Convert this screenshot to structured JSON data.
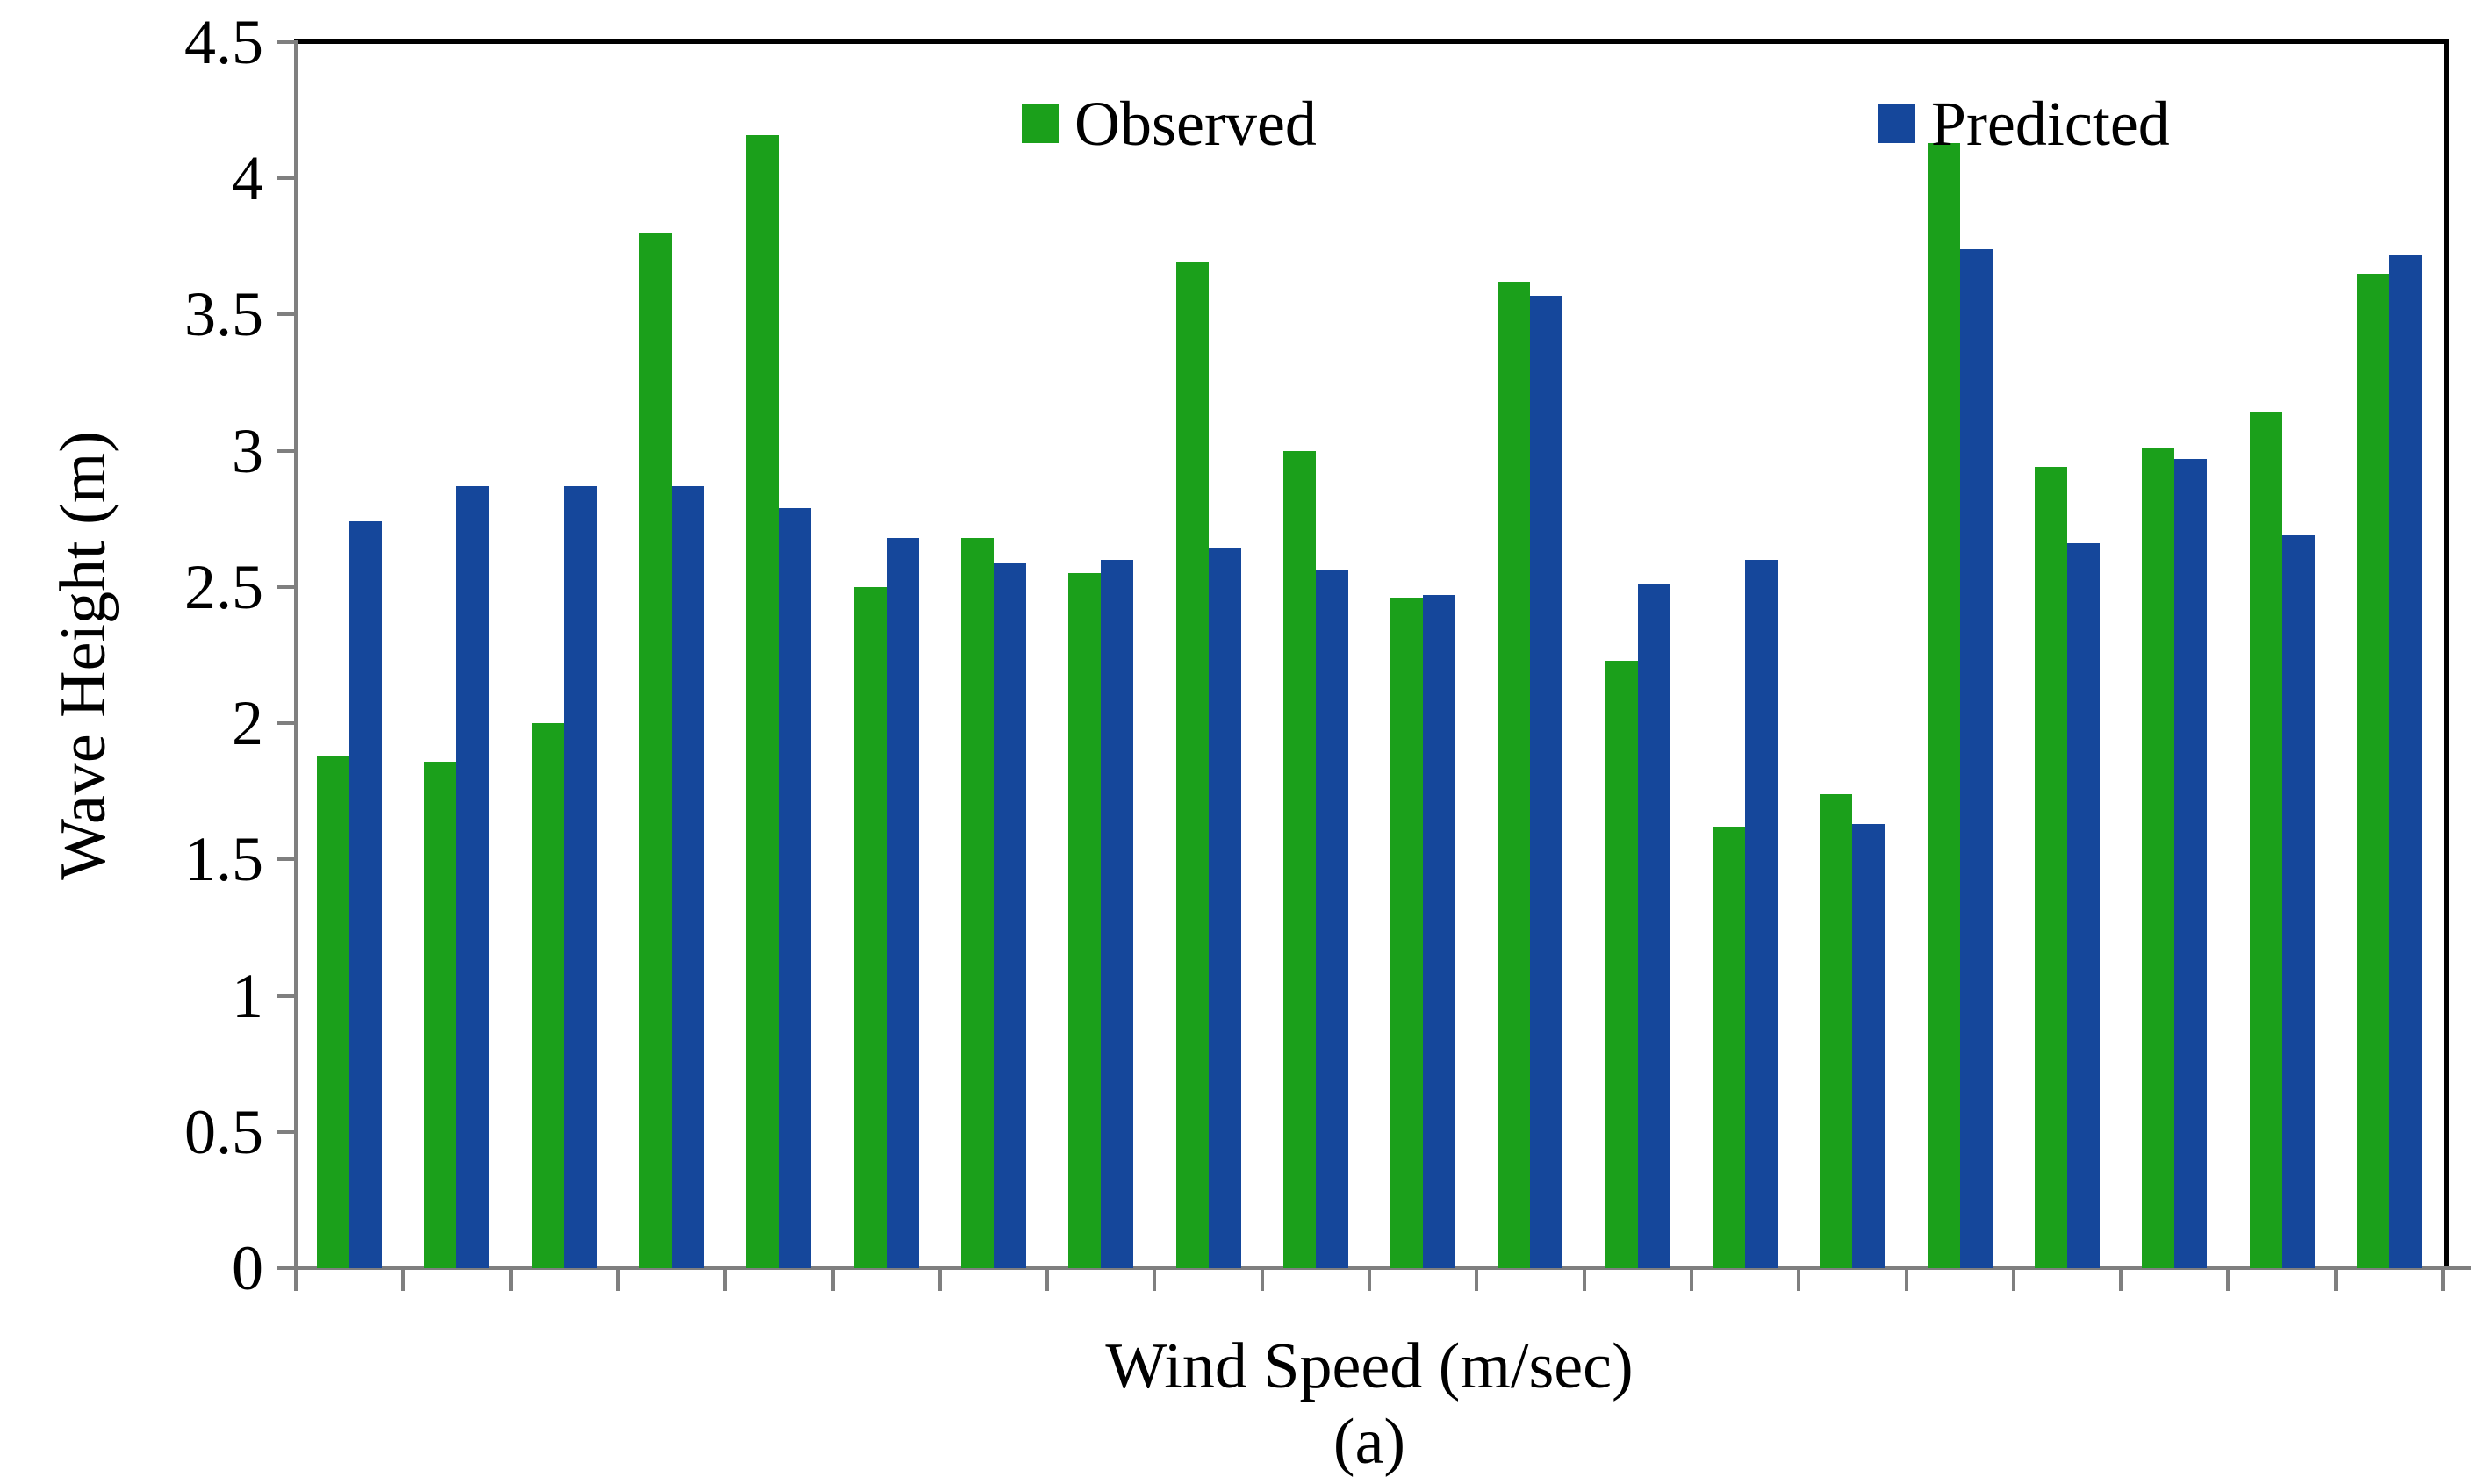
{
  "figure": {
    "y_axis": {
      "title": "Wave Height (m)",
      "ticks": [
        "4.5",
        "4",
        "3.5",
        "3",
        "2.5",
        "2",
        "1.5",
        "1",
        "0.5",
        "0"
      ]
    },
    "x_axis": {
      "title": "Wind Speed (m/sec)"
    },
    "caption": "(a)",
    "legend": {
      "observed_label": "Observed",
      "predicted_label": "Predicted"
    },
    "colors": {
      "observed": "#1BA01B",
      "predicted": "#15479B",
      "axis_gray": "#7f7f7f",
      "border_black": "#000000",
      "text": "#000000",
      "background": "#ffffff"
    }
  },
  "chart_data": {
    "type": "bar",
    "title": "",
    "xlabel": "Wind Speed (m/sec)",
    "ylabel": "Wave Height (m)",
    "caption": "(a)",
    "ylim": [
      0,
      4.5
    ],
    "y_tick_step": 0.5,
    "y_tick_labels": [
      "4.5",
      "4",
      "3.5",
      "3",
      "2.5",
      "2",
      "1.5",
      "1",
      "0.5",
      "0"
    ],
    "x_tick_labels": [],
    "n_groups": 20,
    "grid": false,
    "legend_position": "top-center",
    "series": [
      {
        "name": "Observed",
        "color": "#1BA01B",
        "values": [
          1.88,
          1.86,
          2.0,
          3.8,
          4.16,
          2.5,
          2.68,
          2.55,
          3.69,
          3.0,
          2.46,
          3.62,
          2.23,
          1.62,
          1.74,
          4.13,
          2.94,
          3.01,
          3.14,
          3.65
        ]
      },
      {
        "name": "Predicted",
        "color": "#15479B",
        "values": [
          2.74,
          2.87,
          2.87,
          2.87,
          2.79,
          2.68,
          2.59,
          2.6,
          2.64,
          2.56,
          2.47,
          3.57,
          2.51,
          2.6,
          1.63,
          3.74,
          2.66,
          2.97,
          2.69,
          3.72
        ]
      }
    ]
  }
}
